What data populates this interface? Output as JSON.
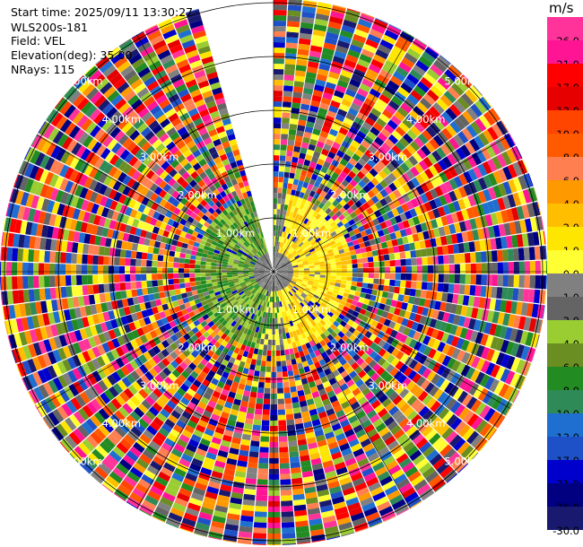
{
  "header": {
    "start_time": "Start time: 2025/09/11 13:30:27",
    "instrument": "WLS200s-181",
    "field": "Field: VEL",
    "elevation": "Elevation(deg): 35.00",
    "nrays": "NRays: 115"
  },
  "chart_data": {
    "type": "heatmap",
    "projection": "polar-ppi",
    "field": "VEL",
    "nrays": 115,
    "elevation_deg": 35.0,
    "range_rings_km": [
      1,
      2,
      3,
      4,
      5
    ],
    "range_ring_labels": [
      "1.00km",
      "2.00km",
      "3.00km",
      "4.00km",
      "5.00km"
    ],
    "missing_sector_deg": [
      345,
      360
    ],
    "colorbar": {
      "unit": "m/s",
      "ticks": [
        "26.0",
        "21.0",
        "17.0",
        "13.0",
        "10.0",
        "8.0",
        "6.0",
        "4.0",
        "2.0",
        "1.0",
        "0.0",
        "-1.0",
        "-2.0",
        "-4.0",
        "-6.0",
        "-8.0",
        "-10.0",
        "-13.0",
        "-17.0",
        "-21.0",
        "-26.0",
        "-30.0"
      ],
      "colors": [
        "#ff3399",
        "#ff1493",
        "#ff0000",
        "#e60000",
        "#ff4500",
        "#ff5a00",
        "#ff7f50",
        "#ff9900",
        "#ffbf00",
        "#ffe600",
        "#ffff33",
        "#808080",
        "#646464",
        "#9acd32",
        "#6b8e23",
        "#228b22",
        "#2e8b57",
        "#1e6fd0",
        "#1e50c8",
        "#0000cd",
        "#000080",
        "#191970"
      ]
    },
    "near_field": {
      "description_sector": "approaching (yellow) to the east, receding (green) to the west"
    }
  }
}
